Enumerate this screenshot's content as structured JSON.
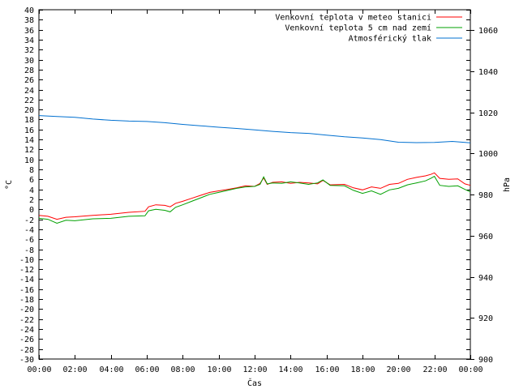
{
  "chart_data": {
    "type": "line",
    "xlabel": "Čas",
    "ylabel": "°C",
    "y2label": "hPa",
    "x_ticks": [
      "00:00",
      "02:00",
      "04:00",
      "06:00",
      "08:00",
      "10:00",
      "12:00",
      "14:00",
      "16:00",
      "18:00",
      "20:00",
      "22:00",
      "00:00"
    ],
    "x_range_hours": [
      0,
      24
    ],
    "ylim": [
      -30,
      40
    ],
    "y_tick_step": 2,
    "y2lim": [
      900,
      1070
    ],
    "y2_tick_step": 20,
    "grid": false,
    "legend_position": "top-right",
    "series": [
      {
        "name": "Venkovní teplota v meteo stanici",
        "axis": "left",
        "color": "#ff0000",
        "points": [
          [
            0,
            -1.2
          ],
          [
            0.5,
            -1.4
          ],
          [
            1,
            -2.0
          ],
          [
            1.5,
            -1.6
          ],
          [
            2,
            -1.5
          ],
          [
            3,
            -1.2
          ],
          [
            4,
            -1.0
          ],
          [
            5,
            -0.6
          ],
          [
            5.9,
            -0.4
          ],
          [
            6.1,
            0.5
          ],
          [
            6.5,
            0.9
          ],
          [
            7,
            0.8
          ],
          [
            7.3,
            0.5
          ],
          [
            7.6,
            1.2
          ],
          [
            8,
            1.6
          ],
          [
            8.5,
            2.2
          ],
          [
            9,
            2.8
          ],
          [
            9.5,
            3.4
          ],
          [
            10,
            3.7
          ],
          [
            10.5,
            4.0
          ],
          [
            11,
            4.3
          ],
          [
            11.5,
            4.7
          ],
          [
            12,
            4.6
          ],
          [
            12.3,
            5.2
          ],
          [
            12.5,
            6.3
          ],
          [
            12.7,
            5.0
          ],
          [
            13,
            5.4
          ],
          [
            13.5,
            5.5
          ],
          [
            14,
            5.2
          ],
          [
            14.5,
            5.4
          ],
          [
            15,
            5.3
          ],
          [
            15.5,
            5.1
          ],
          [
            15.8,
            5.8
          ],
          [
            16.2,
            4.9
          ],
          [
            17,
            5.0
          ],
          [
            17.5,
            4.3
          ],
          [
            18,
            3.9
          ],
          [
            18.5,
            4.5
          ],
          [
            19,
            4.2
          ],
          [
            19.5,
            5.0
          ],
          [
            20,
            5.2
          ],
          [
            20.5,
            6.0
          ],
          [
            21,
            6.4
          ],
          [
            21.5,
            6.7
          ],
          [
            21.8,
            7.0
          ],
          [
            22,
            7.3
          ],
          [
            22.3,
            6.2
          ],
          [
            22.8,
            6.0
          ],
          [
            23.3,
            6.1
          ],
          [
            23.7,
            5.1
          ],
          [
            24,
            4.8
          ]
        ]
      },
      {
        "name": "Venkovní teplota 5 cm nad zemí",
        "axis": "left",
        "color": "#00a000",
        "points": [
          [
            0,
            -1.8
          ],
          [
            0.5,
            -2.0
          ],
          [
            1,
            -2.8
          ],
          [
            1.5,
            -2.2
          ],
          [
            2,
            -2.3
          ],
          [
            3,
            -1.9
          ],
          [
            4,
            -1.8
          ],
          [
            5,
            -1.4
          ],
          [
            5.9,
            -1.3
          ],
          [
            6.1,
            -0.3
          ],
          [
            6.5,
            0.0
          ],
          [
            7,
            -0.2
          ],
          [
            7.3,
            -0.5
          ],
          [
            7.6,
            0.4
          ],
          [
            8,
            0.9
          ],
          [
            8.5,
            1.6
          ],
          [
            9,
            2.3
          ],
          [
            9.5,
            3.0
          ],
          [
            10,
            3.4
          ],
          [
            10.5,
            3.8
          ],
          [
            11,
            4.2
          ],
          [
            11.5,
            4.5
          ],
          [
            12,
            4.6
          ],
          [
            12.3,
            5.0
          ],
          [
            12.5,
            6.5
          ],
          [
            12.7,
            5.1
          ],
          [
            13,
            5.3
          ],
          [
            13.5,
            5.2
          ],
          [
            14,
            5.5
          ],
          [
            14.5,
            5.3
          ],
          [
            15,
            5.0
          ],
          [
            15.5,
            5.3
          ],
          [
            15.8,
            5.9
          ],
          [
            16.2,
            4.8
          ],
          [
            17,
            4.7
          ],
          [
            17.5,
            3.8
          ],
          [
            18,
            3.2
          ],
          [
            18.5,
            3.7
          ],
          [
            19,
            3.0
          ],
          [
            19.5,
            3.9
          ],
          [
            20,
            4.2
          ],
          [
            20.5,
            4.9
          ],
          [
            21,
            5.3
          ],
          [
            21.5,
            5.7
          ],
          [
            21.8,
            6.2
          ],
          [
            22,
            6.6
          ],
          [
            22.3,
            4.8
          ],
          [
            22.8,
            4.6
          ],
          [
            23.3,
            4.7
          ],
          [
            23.7,
            4.0
          ],
          [
            24,
            3.5
          ]
        ]
      },
      {
        "name": "Atmosférický tlak",
        "axis": "right",
        "color": "#0070d0",
        "points": [
          [
            0,
            1018.5
          ],
          [
            1,
            1018.0
          ],
          [
            2,
            1017.6
          ],
          [
            3,
            1016.8
          ],
          [
            4,
            1016.2
          ],
          [
            5,
            1015.8
          ],
          [
            6,
            1015.6
          ],
          [
            7,
            1015.0
          ],
          [
            8,
            1014.2
          ],
          [
            9,
            1013.5
          ],
          [
            10,
            1012.8
          ],
          [
            11,
            1012.2
          ],
          [
            12,
            1011.5
          ],
          [
            13,
            1010.8
          ],
          [
            14,
            1010.2
          ],
          [
            15,
            1009.8
          ],
          [
            16,
            1009.0
          ],
          [
            17,
            1008.2
          ],
          [
            18,
            1007.6
          ],
          [
            19,
            1006.8
          ],
          [
            20,
            1005.5
          ],
          [
            21,
            1005.3
          ],
          [
            22,
            1005.4
          ],
          [
            23,
            1005.9
          ],
          [
            24,
            1005.2
          ]
        ]
      }
    ]
  }
}
